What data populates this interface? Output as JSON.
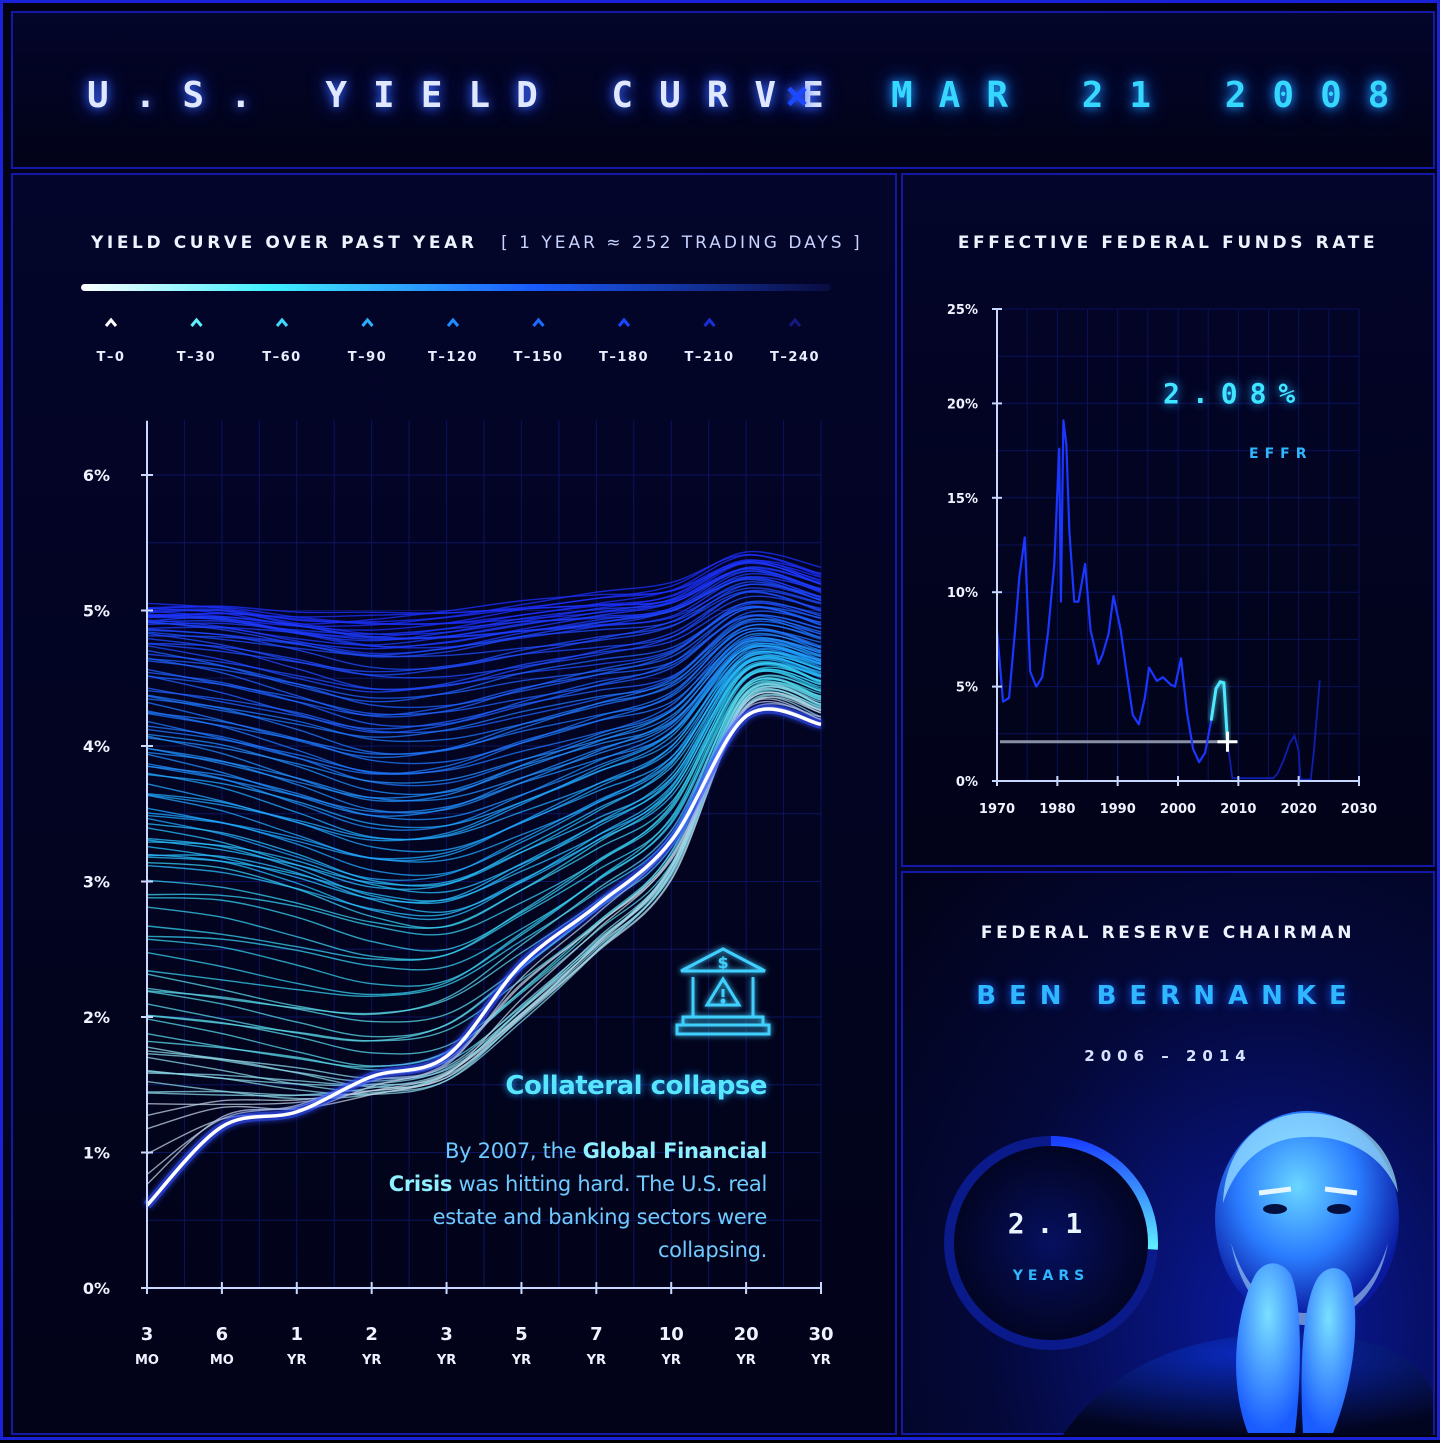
{
  "header": {
    "title": "U.S. YIELD CURVE",
    "separator": "×",
    "date": "MAR 21 2008"
  },
  "left_panel": {
    "title": "YIELD CURVE OVER PAST YEAR",
    "subtitle": "[ 1 YEAR ≈ 252 TRADING DAYS ]",
    "legend": [
      "T–0",
      "T–30",
      "T–60",
      "T–90",
      "T–120",
      "T–150",
      "T–180",
      "T–210",
      "T–240"
    ],
    "legend_colors": [
      "#ffffff",
      "#5ff0ff",
      "#3fd8ff",
      "#28b0ff",
      "#1f8cff",
      "#1b6cff",
      "#1848ff",
      "#1830d8",
      "#141a80"
    ],
    "annotation_title": "Collateral collapse",
    "annotation_pre": "By 2007, the ",
    "annotation_bold": "Global Financial Crisis",
    "annotation_post": " was hitting hard. The U.S. real estate and banking sectors were collapsing.",
    "icon": "bank-crisis-icon"
  },
  "effr_panel": {
    "title": "EFFECTIVE FEDERAL FUNDS RATE",
    "value": "2.08%",
    "value_label": "EFFR"
  },
  "chair_panel": {
    "title": "FEDERAL RESERVE CHAIRMAN",
    "name": "BEN BERNANKE",
    "years": "2006 – 2014",
    "tenure_value": "2.1",
    "tenure_label": "YEARS",
    "tenure_fraction": 0.26
  },
  "colors": {
    "accent": "#37d8ff",
    "brand_blue": "#1a22d8",
    "current_curve": "#ffffff"
  },
  "chart_data": [
    {
      "type": "line",
      "title": "YIELD CURVE OVER PAST YEAR",
      "categories": [
        "3 MO",
        "6 MO",
        "1 YR",
        "2 YR",
        "3 YR",
        "5 YR",
        "7 YR",
        "10 YR",
        "20 YR",
        "30 YR"
      ],
      "x_tick_top": [
        "3",
        "6",
        "1",
        "2",
        "3",
        "5",
        "7",
        "10",
        "20",
        "30"
      ],
      "x_tick_bottom": [
        "MO",
        "MO",
        "YR",
        "YR",
        "YR",
        "YR",
        "YR",
        "YR",
        "YR",
        "YR"
      ],
      "y_ticks": [
        "0%",
        "1%",
        "2%",
        "3%",
        "4%",
        "5%",
        "6%"
      ],
      "ylim": [
        0,
        6.4
      ],
      "grid": true,
      "series": [
        {
          "values": [
            5.02,
            5.0,
            4.95,
            4.97,
            5.0,
            5.06,
            5.12,
            5.18,
            5.4,
            5.28
          ]
        },
        {
          "values": [
            4.95,
            4.96,
            4.88,
            4.82,
            4.85,
            4.92,
            4.98,
            5.05,
            5.32,
            5.18
          ]
        },
        {
          "values": [
            4.88,
            4.85,
            4.78,
            4.7,
            4.72,
            4.8,
            4.87,
            4.96,
            5.22,
            5.1
          ]
        },
        {
          "values": [
            4.7,
            4.62,
            4.48,
            4.35,
            4.38,
            4.5,
            4.6,
            4.72,
            5.05,
            4.95
          ]
        },
        {
          "values": [
            4.4,
            4.3,
            4.18,
            4.05,
            4.08,
            4.22,
            4.36,
            4.5,
            4.92,
            4.82
          ]
        },
        {
          "values": [
            4.1,
            4.0,
            3.85,
            3.7,
            3.72,
            3.9,
            4.07,
            4.26,
            4.78,
            4.68
          ]
        },
        {
          "values": [
            3.8,
            3.7,
            3.55,
            3.4,
            3.42,
            3.62,
            3.84,
            4.08,
            4.7,
            4.62
          ]
        },
        {
          "values": [
            3.4,
            3.32,
            3.18,
            3.02,
            3.02,
            3.25,
            3.52,
            3.84,
            4.62,
            4.55
          ]
        },
        {
          "values": [
            3.1,
            3.08,
            2.96,
            2.78,
            2.7,
            2.94,
            3.25,
            3.62,
            4.55,
            4.48
          ]
        },
        {
          "values": [
            2.3,
            2.22,
            2.12,
            2.05,
            2.14,
            2.5,
            2.9,
            3.36,
            4.44,
            4.38
          ]
        },
        {
          "values": [
            1.8,
            1.72,
            1.62,
            1.52,
            1.6,
            2.05,
            2.55,
            3.1,
            4.36,
            4.3
          ]
        },
        {
          "values": [
            1.4,
            1.38,
            1.36,
            1.42,
            1.55,
            2.0,
            2.5,
            3.05,
            4.3,
            4.24
          ]
        },
        {
          "values": [
            0.61,
            1.19,
            1.3,
            1.56,
            1.71,
            2.39,
            2.82,
            3.3,
            4.22,
            4.16
          ]
        }
      ]
    },
    {
      "type": "line",
      "title": "EFFECTIVE FEDERAL FUNDS RATE",
      "x_ticks": [
        1970,
        1980,
        1990,
        2000,
        2010,
        2020,
        2030
      ],
      "y_ticks": [
        "0%",
        "5%",
        "10%",
        "15%",
        "20%",
        "25%"
      ],
      "xlim": [
        1970,
        2030
      ],
      "ylim": [
        0,
        25
      ],
      "grid": true,
      "current": {
        "x": 2008.2,
        "y": 2.08
      },
      "history": {
        "x": [
          1970,
          1971,
          1972,
          1973,
          1973.7,
          1974.6,
          1975.5,
          1976.5,
          1977.5,
          1978.5,
          1979.5,
          1980.3,
          1980.6,
          1981.0,
          1981.5,
          1982.0,
          1982.8,
          1983.5,
          1984.6,
          1985.5,
          1986.8,
          1987.5,
          1988.5,
          1989.3,
          1990.5,
          1991.5,
          1992.5,
          1993.5,
          1994.5,
          1995.2,
          1996.5,
          1997.5,
          1998.8,
          1999.5,
          2000.5,
          2001.5,
          2002.5,
          2003.5,
          2004.5,
          2005.5
        ],
        "y": [
          8.0,
          4.2,
          4.4,
          8.0,
          10.8,
          12.9,
          5.8,
          5.0,
          5.5,
          8.0,
          11.5,
          17.6,
          9.5,
          19.1,
          17.8,
          13.2,
          9.5,
          9.5,
          11.5,
          8.0,
          6.2,
          6.7,
          7.8,
          9.8,
          8.0,
          5.7,
          3.5,
          3.0,
          4.4,
          6.0,
          5.3,
          5.5,
          5.1,
          5.0,
          6.5,
          3.6,
          1.7,
          1.0,
          1.5,
          3.2
        ]
      },
      "past_year": {
        "x": [
          2005.5,
          2006.3,
          2007.0,
          2007.6,
          2008.2
        ],
        "y": [
          3.2,
          4.9,
          5.25,
          5.2,
          2.08
        ]
      },
      "future": {
        "x": [
          2008.2,
          2009.0,
          2015.8,
          2016.5,
          2017.5,
          2018.5,
          2019.3,
          2020.0,
          2020.3,
          2022.0,
          2022.5,
          2023.5
        ],
        "y": [
          2.08,
          0.15,
          0.15,
          0.4,
          1.1,
          2.0,
          2.4,
          1.6,
          0.08,
          0.08,
          1.5,
          5.33
        ]
      }
    }
  ]
}
